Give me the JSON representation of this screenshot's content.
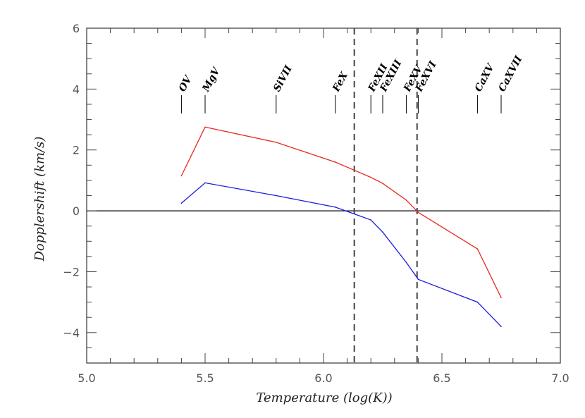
{
  "chart_data": {
    "type": "line",
    "title": "",
    "xlabel": "Temperature (log(K))",
    "ylabel": "Dopplershift (km/s)",
    "xlim": [
      5.0,
      7.0
    ],
    "ylim": [
      -5,
      6
    ],
    "x_ticks": [
      5.0,
      5.5,
      6.0,
      6.5,
      7.0
    ],
    "x_tick_labels": [
      "5.0",
      "5.5",
      "6.0",
      "6.5",
      "7.0"
    ],
    "y_ticks": [
      -4,
      -2,
      0,
      2,
      4,
      6
    ],
    "y_tick_labels": [
      "−4",
      "−2",
      "0",
      "2",
      "4",
      "6"
    ],
    "grid": false,
    "series": [
      {
        "color": "#e8281e",
        "x": [
          5.4,
          5.5,
          5.8,
          6.05,
          6.2,
          6.25,
          6.35,
          6.4,
          6.65,
          6.75
        ],
        "values": [
          1.15,
          2.75,
          2.25,
          1.6,
          1.1,
          0.9,
          0.35,
          -0.05,
          -1.25,
          -2.85
        ]
      },
      {
        "color": "#1a1ae0",
        "x": [
          5.4,
          5.5,
          5.8,
          6.05,
          6.2,
          6.25,
          6.35,
          6.4,
          6.65,
          6.75
        ],
        "values": [
          0.25,
          0.92,
          0.5,
          0.12,
          -0.3,
          -0.7,
          -1.7,
          -2.25,
          -3.0,
          -3.8
        ]
      }
    ],
    "reference_lines": {
      "horizontal": [
        {
          "y": 0,
          "color": "#000000",
          "style": "solid"
        }
      ],
      "vertical": [
        {
          "x": 6.13,
          "color": "#444444",
          "style": "dashed"
        },
        {
          "x": 6.395,
          "color": "#444444",
          "style": "dashed"
        }
      ]
    },
    "annotations": [
      {
        "text": "OV",
        "x": 5.4
      },
      {
        "text": "MgV",
        "x": 5.5
      },
      {
        "text": "SiVII",
        "x": 5.8
      },
      {
        "text": "FeX",
        "x": 6.05
      },
      {
        "text": "FeXII",
        "x": 6.2
      },
      {
        "text": "FeXIII",
        "x": 6.25
      },
      {
        "text": "FeXV",
        "x": 6.35
      },
      {
        "text": "FeXVI",
        "x": 6.4
      },
      {
        "text": "CaXV",
        "x": 6.65
      },
      {
        "text": "CaXVII",
        "x": 6.75
      }
    ],
    "annotation_marker_range": [
      3.2,
      3.8
    ]
  }
}
